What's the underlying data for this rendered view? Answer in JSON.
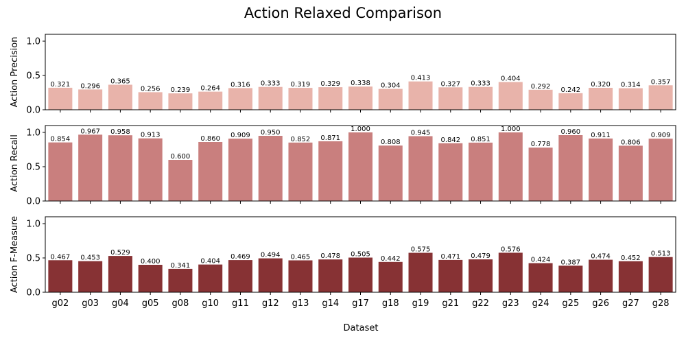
{
  "title": "Action Relaxed Comparison",
  "xlabel": "Dataset",
  "chart_data": [
    {
      "type": "bar",
      "ylabel": "Action Precision",
      "ylim": [
        0,
        1.1
      ],
      "yticks": [
        0.0,
        0.5,
        1.0
      ],
      "color": "#e8b3aa",
      "categories": [
        "g02",
        "g03",
        "g04",
        "g05",
        "g08",
        "g10",
        "g11",
        "g12",
        "g13",
        "g14",
        "g17",
        "g18",
        "g19",
        "g21",
        "g22",
        "g23",
        "g24",
        "g25",
        "g26",
        "g27",
        "g28"
      ],
      "values": [
        0.321,
        0.296,
        0.365,
        0.256,
        0.239,
        0.264,
        0.316,
        0.333,
        0.319,
        0.329,
        0.338,
        0.304,
        0.413,
        0.327,
        0.333,
        0.404,
        0.292,
        0.242,
        0.32,
        0.314,
        0.357
      ],
      "show_xticklabels": false
    },
    {
      "type": "bar",
      "ylabel": "Action Recall",
      "ylim": [
        0,
        1.1
      ],
      "yticks": [
        0.0,
        0.5,
        1.0
      ],
      "color": "#c97f7e",
      "categories": [
        "g02",
        "g03",
        "g04",
        "g05",
        "g08",
        "g10",
        "g11",
        "g12",
        "g13",
        "g14",
        "g17",
        "g18",
        "g19",
        "g21",
        "g22",
        "g23",
        "g24",
        "g25",
        "g26",
        "g27",
        "g28"
      ],
      "values": [
        0.854,
        0.967,
        0.958,
        0.913,
        0.6,
        0.86,
        0.909,
        0.95,
        0.852,
        0.871,
        1.0,
        0.808,
        0.945,
        0.842,
        0.851,
        1.0,
        0.778,
        0.96,
        0.911,
        0.806,
        0.909
      ],
      "show_xticklabels": false
    },
    {
      "type": "bar",
      "ylabel": "Action F-Measure",
      "ylim": [
        0,
        1.1
      ],
      "yticks": [
        0.0,
        0.5,
        1.0
      ],
      "color": "#873234",
      "categories": [
        "g02",
        "g03",
        "g04",
        "g05",
        "g08",
        "g10",
        "g11",
        "g12",
        "g13",
        "g14",
        "g17",
        "g18",
        "g19",
        "g21",
        "g22",
        "g23",
        "g24",
        "g25",
        "g26",
        "g27",
        "g28"
      ],
      "values": [
        0.467,
        0.453,
        0.529,
        0.4,
        0.341,
        0.404,
        0.469,
        0.494,
        0.465,
        0.478,
        0.505,
        0.442,
        0.575,
        0.471,
        0.479,
        0.576,
        0.424,
        0.387,
        0.474,
        0.452,
        0.513
      ],
      "show_xticklabels": true
    }
  ]
}
